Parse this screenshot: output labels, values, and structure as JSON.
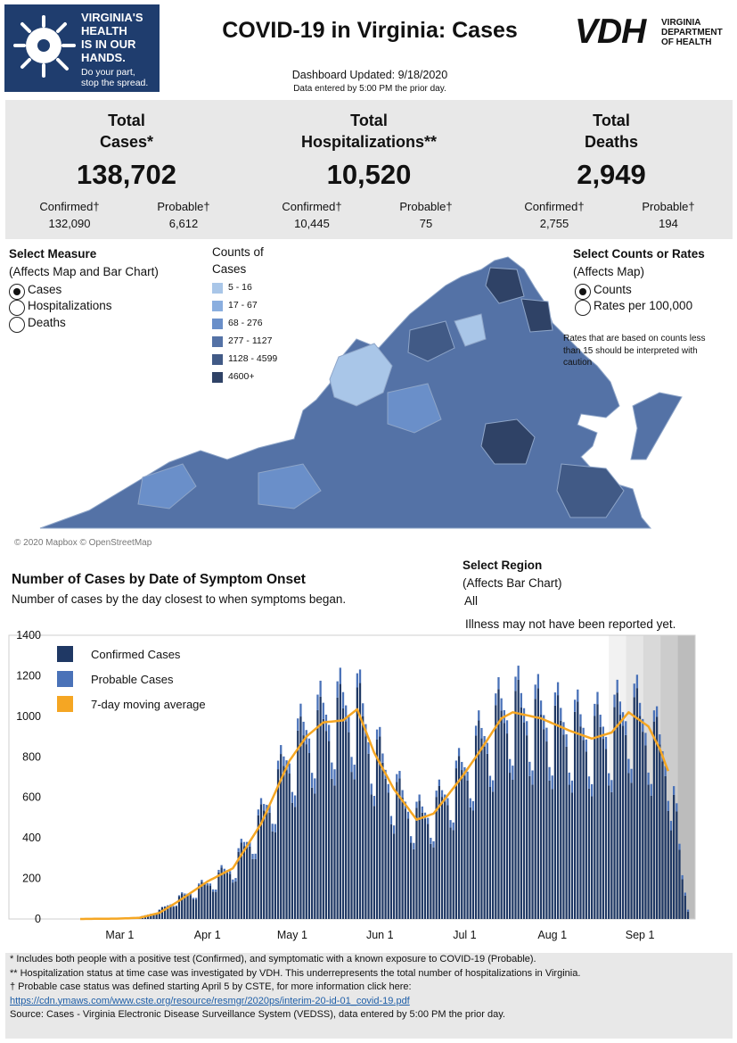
{
  "header": {
    "logo_lines": [
      "VIRGINIA'S",
      "HEALTH",
      "IS IN OUR",
      "HANDS."
    ],
    "logo_sub": [
      "Do your part,",
      "stop the spread."
    ],
    "title": "COVID-19 in Virginia: Cases",
    "vdh_mark": "VDH",
    "vdh_sub": [
      "VIRGINIA",
      "DEPARTMENT",
      "OF HEALTH"
    ],
    "updated": "Dashboard Updated: 9/18/2020",
    "entered": "Data entered by 5:00 PM the prior day."
  },
  "stats": {
    "cases": {
      "title1": "Total",
      "title2": "Cases*",
      "value": "138,702",
      "confirmed_label": "Confirmed†",
      "confirmed": "132,090",
      "probable_label": "Probable†",
      "probable": "6,612"
    },
    "hosp": {
      "title1": "Total",
      "title2": "Hospitalizations**",
      "value": "10,520",
      "confirmed_label": "Confirmed†",
      "confirmed": "10,445",
      "probable_label": "Probable†",
      "probable": "75"
    },
    "deaths": {
      "title1": "Total",
      "title2": "Deaths",
      "value": "2,949",
      "confirmed_label": "Confirmed†",
      "confirmed": "2,755",
      "probable_label": "Probable†",
      "probable": "194"
    }
  },
  "measure": {
    "title": "Select Measure",
    "subtitle": "(Affects Map and Bar Chart)",
    "options": [
      "Cases",
      "Hospitalizations",
      "Deaths"
    ],
    "selected": "Cases"
  },
  "legend": {
    "title1": "Counts of",
    "title2": "Cases",
    "bins": [
      {
        "label": "5 - 16",
        "color": "#a9c6e8"
      },
      {
        "label": "17 - 67",
        "color": "#8aaedf"
      },
      {
        "label": "68 - 276",
        "color": "#6a8fc9"
      },
      {
        "label": "277 - 1127",
        "color": "#5472a6"
      },
      {
        "label": "1128 - 4599",
        "color": "#415a86"
      },
      {
        "label": "4600+",
        "color": "#2f4266"
      }
    ]
  },
  "rates": {
    "title": "Select Counts or Rates",
    "subtitle": "(Affects Map)",
    "options": [
      "Counts",
      "Rates per 100,000"
    ],
    "selected": "Counts",
    "note": [
      "Rates that are based on counts less",
      "than 15 should be interpreted with",
      "caution"
    ]
  },
  "map_credit": "© 2020 Mapbox © OpenStreetMap",
  "chart_section": {
    "title": "Number of Cases by Date of Symptom Onset",
    "subtitle": "Number of cases by the day closest to when symptoms began.",
    "region_title": "Select Region",
    "region_subtitle": "(Affects Bar Chart)",
    "region_value": "All",
    "note": "Illness may not have been reported yet."
  },
  "chart_data": {
    "type": "bar",
    "x_type": "date",
    "x_start": "2020-02-16",
    "x_end": "2020-09-18",
    "ylim": [
      0,
      1400
    ],
    "yticks": [
      0,
      200,
      400,
      600,
      800,
      1000,
      1200,
      1400
    ],
    "xticks": [
      {
        "label": "Mar 1",
        "date": "2020-03-01"
      },
      {
        "label": "Apr 1",
        "date": "2020-04-01"
      },
      {
        "label": "May 1",
        "date": "2020-05-01"
      },
      {
        "label": "Jun 1",
        "date": "2020-06-01"
      },
      {
        "label": "Jul 1",
        "date": "2020-07-01"
      },
      {
        "label": "Aug 1",
        "date": "2020-08-01"
      },
      {
        "label": "Sep 1",
        "date": "2020-09-01"
      }
    ],
    "legend": [
      {
        "name": "Confirmed Cases",
        "color": "#1f3864"
      },
      {
        "name": "Probable Cases",
        "color": "#4a72b8"
      },
      {
        "name": "7-day moving average",
        "color": "#f5a623"
      }
    ],
    "shaded_start": "2020-08-21",
    "series": [
      {
        "name": "Confirmed Cases",
        "color": "#1f3864"
      },
      {
        "name": "Probable Cases",
        "color": "#4a72b8"
      },
      {
        "name": "7-day moving average",
        "color": "#f5a623"
      }
    ],
    "anchors": [
      [
        "2020-02-16",
        0,
        0,
        0
      ],
      [
        "2020-03-01",
        2,
        0,
        2
      ],
      [
        "2020-03-08",
        8,
        0,
        6
      ],
      [
        "2020-03-15",
        40,
        2,
        30
      ],
      [
        "2020-03-22",
        100,
        5,
        90
      ],
      [
        "2020-04-01",
        170,
        10,
        185
      ],
      [
        "2020-04-10",
        250,
        15,
        250
      ],
      [
        "2020-04-20",
        480,
        30,
        470
      ],
      [
        "2020-04-30",
        780,
        50,
        780
      ],
      [
        "2020-05-06",
        880,
        70,
        900
      ],
      [
        "2020-05-12",
        940,
        80,
        970
      ],
      [
        "2020-05-19",
        990,
        80,
        980
      ],
      [
        "2020-05-24",
        1020,
        70,
        1035
      ],
      [
        "2020-05-30",
        820,
        50,
        820
      ],
      [
        "2020-06-06",
        620,
        40,
        640
      ],
      [
        "2020-06-14",
        490,
        30,
        490
      ],
      [
        "2020-06-20",
        520,
        30,
        520
      ],
      [
        "2020-06-30",
        700,
        40,
        700
      ],
      [
        "2020-07-06",
        830,
        50,
        820
      ],
      [
        "2020-07-14",
        980,
        60,
        990
      ],
      [
        "2020-07-18",
        1010,
        70,
        1020
      ],
      [
        "2020-07-28",
        960,
        70,
        990
      ],
      [
        "2020-08-07",
        920,
        60,
        930
      ],
      [
        "2020-08-15",
        890,
        60,
        890
      ],
      [
        "2020-08-22",
        920,
        60,
        920
      ],
      [
        "2020-08-28",
        1000,
        70,
        1020
      ],
      [
        "2020-09-04",
        920,
        60,
        950
      ],
      [
        "2020-09-08",
        820,
        50,
        840
      ],
      [
        "2020-09-11",
        740,
        50,
        730
      ],
      [
        "2020-09-14",
        450,
        40,
        null
      ],
      [
        "2020-09-16",
        200,
        20,
        null
      ],
      [
        "2020-09-18",
        50,
        10,
        null
      ]
    ]
  },
  "footnotes": {
    "lines": [
      "* Includes both people with a positive test (Confirmed), and symptomatic with a known exposure to COVID-19 (Probable).",
      "** Hospitalization status at time case was investigated by VDH. This underrepresents the total number of hospitalizations in Virginia.",
      "† Probable case status was defined starting April 5 by CSTE, for more information click here:"
    ],
    "link": "https://cdn.ymaws.com/www.cste.org/resource/resmgr/2020ps/interim-20-id-01_covid-19.pdf",
    "source": "Source:  Cases - Virginia Electronic Disease Surveillance System (VEDSS), data entered by 5:00 PM the prior day."
  }
}
